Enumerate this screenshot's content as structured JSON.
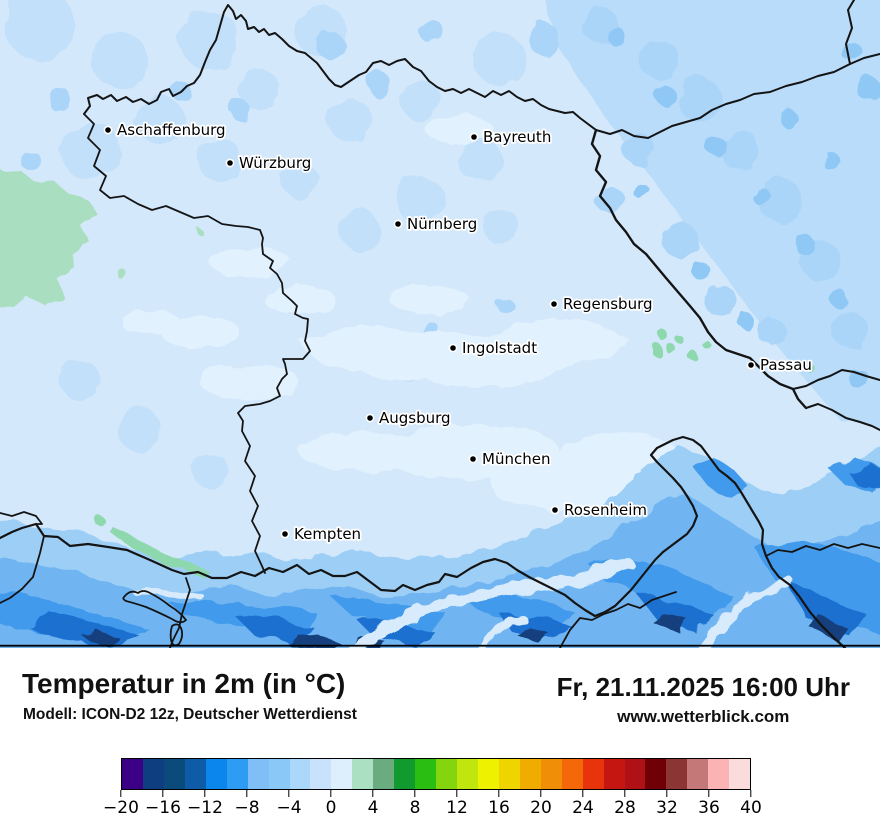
{
  "header": {
    "title": "Temperatur in 2m (in °C)",
    "model": "Modell: ICON-D2 12z, Deutscher Wetterdienst",
    "datetime": "Fr, 21.11.2025 16:00 Uhr",
    "website": "www.wetterblick.com"
  },
  "map": {
    "cities": [
      {
        "label": "Aschaffenburg"
      },
      {
        "label": "Würzburg"
      },
      {
        "label": "Bayreuth"
      },
      {
        "label": "Nürnberg"
      },
      {
        "label": "Regensburg"
      },
      {
        "label": "Ingolstadt"
      },
      {
        "label": "Passau"
      },
      {
        "label": "Augsburg"
      },
      {
        "label": "München"
      },
      {
        "label": "Rosenheim"
      },
      {
        "label": "Kempten"
      }
    ]
  },
  "colorbar": {
    "min": -20,
    "max": 40,
    "step": 2,
    "colors": [
      "#3c0087",
      "#0e3d80",
      "#0b4b7c",
      "#0e5ca8",
      "#0a86ec",
      "#2f9cf3",
      "#7fbef7",
      "#8ac8f8",
      "#aad7fa",
      "#c9e2fb",
      "#ddeefc",
      "#abe0c3",
      "#6aab80",
      "#119b2f",
      "#2abd12",
      "#84d40e",
      "#bfe70d",
      "#eef200",
      "#efd500",
      "#f0ad00",
      "#f18e08",
      "#f4680a",
      "#e8340c",
      "#c61612",
      "#b01117",
      "#700005",
      "#8c3535",
      "#c47878",
      "#fcb3b3",
      "#fadcdc"
    ],
    "tick_values": [
      -20,
      -16,
      -12,
      -8,
      -4,
      0,
      4,
      8,
      12,
      16,
      20,
      24,
      28,
      32,
      36,
      40
    ],
    "tick_labels": [
      "−20",
      "−16",
      "−12",
      "−8",
      "−4",
      "0",
      "4",
      "8",
      "12",
      "16",
      "20",
      "24",
      "28",
      "32",
      "36",
      "40"
    ]
  },
  "palette": {
    "base": "#d4e8fb",
    "light_patch": "#e2f1fe",
    "cool_patch_1": "#c3e0fa",
    "cool_patch_2": "#abd5f8",
    "cool_patch_3": "#90c8f5",
    "alps_1": "#9dcff6",
    "alps_2": "#6fb5f1",
    "alps_3": "#429aec",
    "alps_4": "#1d6fcf",
    "alps_5": "#133f7d",
    "valley": "#d8ebfc",
    "green_mild": "#a9dfc0",
    "green_valley": "#8ed8ae",
    "border": "#141414"
  }
}
